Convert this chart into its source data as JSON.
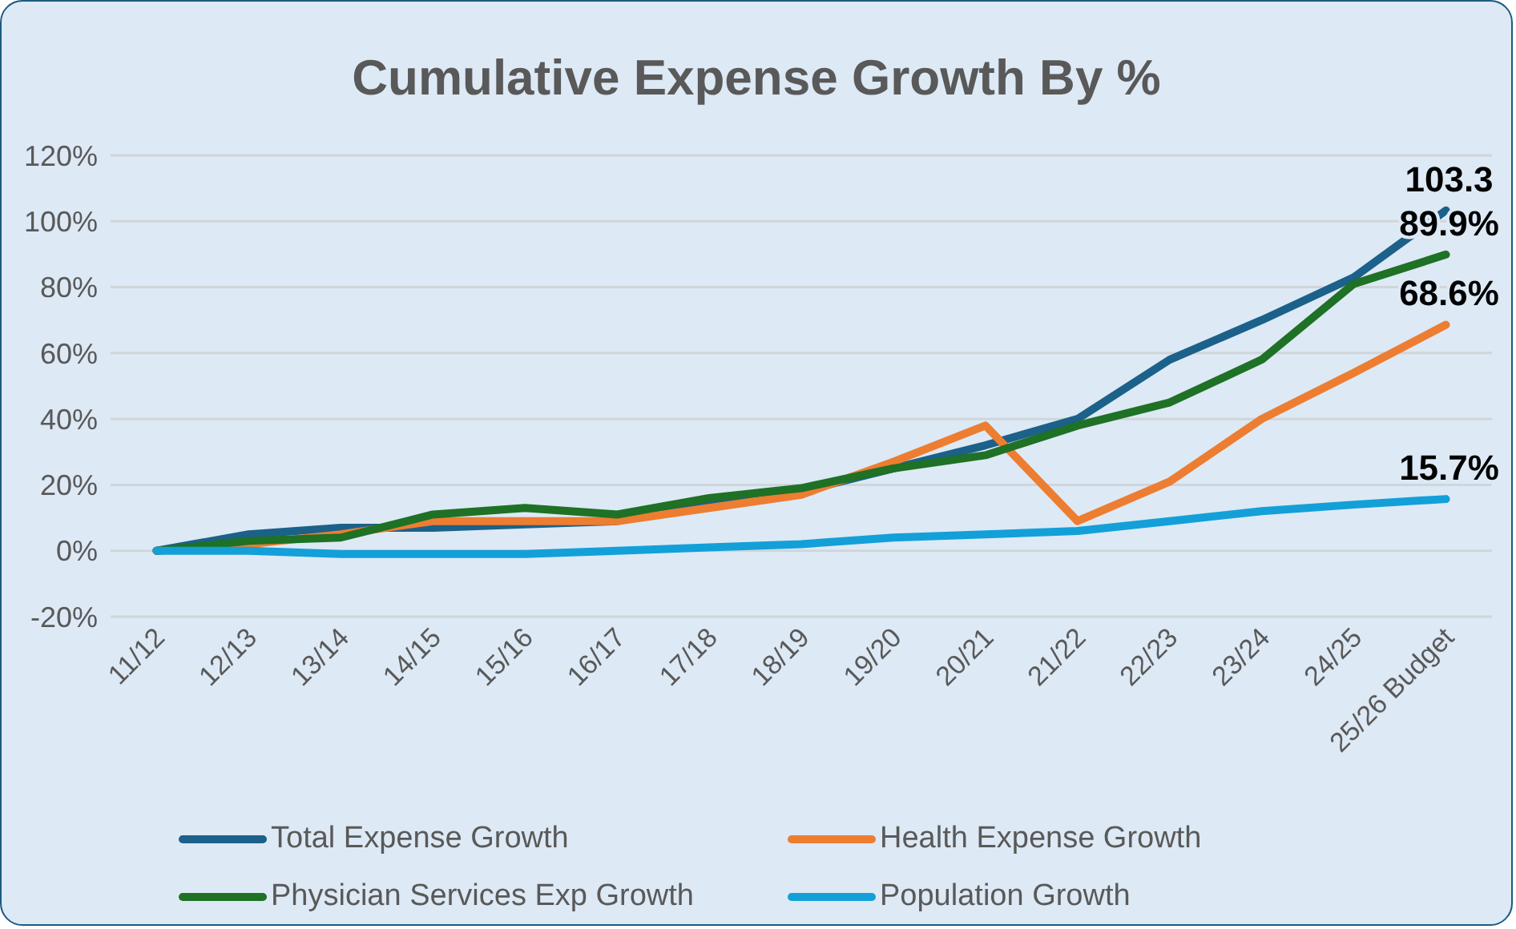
{
  "chart_data": {
    "type": "line",
    "title": "Cumulative Expense Growth By %",
    "categories": [
      "11/12",
      "12/13",
      "13/14",
      "14/15",
      "15/16",
      "16/17",
      "17/18",
      "18/19",
      "19/20",
      "20/21",
      "21/22",
      "22/23",
      "23/24",
      "24/25",
      "25/26  Budget"
    ],
    "series": [
      {
        "name": "Total Expense Growth",
        "color": "#1b6189",
        "values": [
          0,
          5,
          7,
          7,
          8,
          9,
          14,
          18,
          25,
          32,
          40,
          58,
          70,
          83,
          103.3
        ],
        "value_labels": [
          null,
          null,
          null,
          null,
          null,
          null,
          null,
          null,
          null,
          null,
          null,
          null,
          null,
          null,
          "103.3"
        ]
      },
      {
        "name": "Health Expense Growth",
        "color": "#ed7d31",
        "values": [
          0,
          2,
          5,
          9,
          9,
          9,
          13,
          17,
          27,
          38,
          9,
          21,
          40,
          54,
          68.6
        ],
        "value_labels": [
          null,
          null,
          null,
          null,
          null,
          null,
          null,
          null,
          null,
          null,
          null,
          null,
          null,
          null,
          "68.6%"
        ]
      },
      {
        "name": "Physician Services Exp Growth",
        "color": "#1e7125",
        "values": [
          0,
          3,
          4,
          11,
          13,
          11,
          16,
          19,
          25,
          29,
          38,
          45,
          58,
          81,
          89.9
        ],
        "value_labels": [
          null,
          null,
          null,
          null,
          null,
          null,
          null,
          null,
          null,
          null,
          null,
          null,
          null,
          null,
          "89.9%"
        ]
      },
      {
        "name": "Population Growth",
        "color": "#13a0d8",
        "values": [
          0,
          0,
          -1,
          -1,
          -1,
          0,
          1,
          2,
          4,
          5,
          6,
          9,
          12,
          14,
          15.7
        ],
        "value_labels": [
          null,
          null,
          null,
          null,
          null,
          null,
          null,
          null,
          null,
          null,
          null,
          null,
          null,
          null,
          "15.7%"
        ]
      }
    ],
    "ylim": [
      -20,
      120
    ],
    "yticks": [
      {
        "value": -20,
        "label": "-20%"
      },
      {
        "value": 0,
        "label": "0%"
      },
      {
        "value": 20,
        "label": "20%"
      },
      {
        "value": 40,
        "label": "40%"
      },
      {
        "value": 60,
        "label": "60%"
      },
      {
        "value": 80,
        "label": "80%"
      },
      {
        "value": 100,
        "label": "100%"
      },
      {
        "value": 120,
        "label": "120%"
      }
    ],
    "grid": "y",
    "legend": "bottom",
    "marker": "none",
    "line_style": "solid"
  }
}
